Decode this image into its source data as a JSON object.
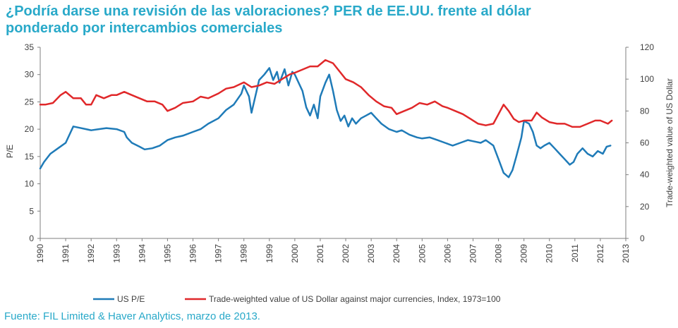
{
  "title": {
    "line1": "¿Podría darse una revisión de las valoraciones? PER de EE.UU. frente al dólar",
    "line2": "ponderado por intercambios comerciales"
  },
  "source": "Fuente: FIL Limited & Haver Analytics, marzo de 2013.",
  "colors": {
    "title": "#29a9c9",
    "us_pe": "#1f7bb8",
    "usd": "#e0282a",
    "axis": "#7f7f7f"
  },
  "chart_data": {
    "type": "line",
    "ylabel_left": "P/E",
    "ylabel_right": "Trade-weighted value of US Dollar",
    "ylim_left": [
      0,
      35
    ],
    "ylim_right": [
      0,
      120
    ],
    "xlim": [
      1990,
      2013
    ],
    "x_ticks": [
      "1990",
      "1991",
      "1992",
      "1993",
      "1994",
      "1995",
      "1996",
      "1997",
      "1998",
      "1999",
      "2000",
      "2001",
      "2002",
      "2003",
      "2004",
      "2005",
      "2006",
      "2007",
      "2008",
      "2009",
      "2010",
      "2011",
      "2012",
      "2013"
    ],
    "y_ticks_left": [
      "0",
      "5",
      "10",
      "15",
      "20",
      "25",
      "30",
      "35"
    ],
    "y_ticks_right": [
      "0",
      "20",
      "40",
      "60",
      "80",
      "100",
      "120"
    ],
    "legend": {
      "position": "bottom"
    },
    "series": [
      {
        "name": "US P/E",
        "axis": "left",
        "x": [
          1990.0,
          1990.15,
          1990.4,
          1990.7,
          1991.0,
          1991.2,
          1991.3,
          1991.5,
          1991.8,
          1992.0,
          1992.3,
          1992.6,
          1993.0,
          1993.3,
          1993.4,
          1993.6,
          1993.9,
          1994.1,
          1994.4,
          1994.7,
          1995.0,
          1995.3,
          1995.6,
          1996.0,
          1996.3,
          1996.6,
          1997.0,
          1997.3,
          1997.6,
          1997.9,
          1998.0,
          1998.2,
          1998.3,
          1998.5,
          1998.6,
          1998.8,
          1999.0,
          1999.15,
          1999.3,
          1999.4,
          1999.6,
          1999.75,
          1999.9,
          2000.0,
          2000.1,
          2000.3,
          2000.45,
          2000.6,
          2000.75,
          2000.9,
          2001.0,
          2001.2,
          2001.35,
          2001.5,
          2001.65,
          2001.8,
          2001.95,
          2002.1,
          2002.25,
          2002.4,
          2002.6,
          2002.8,
          2003.0,
          2003.2,
          2003.4,
          2003.7,
          2004.0,
          2004.2,
          2004.5,
          2004.8,
          2005.0,
          2005.3,
          2005.6,
          2005.9,
          2006.2,
          2006.5,
          2006.8,
          2007.0,
          2007.3,
          2007.5,
          2007.8,
          2008.0,
          2008.2,
          2008.4,
          2008.55,
          2008.7,
          2008.9,
          2009.0,
          2009.2,
          2009.35,
          2009.5,
          2009.65,
          2009.8,
          2010.0,
          2010.2,
          2010.4,
          2010.6,
          2010.8,
          2010.95,
          2011.1,
          2011.3,
          2011.5,
          2011.7,
          2011.9,
          2012.1,
          2012.25,
          2012.4
        ],
        "values": [
          12.8,
          14.0,
          15.5,
          16.5,
          17.5,
          19.5,
          20.5,
          20.3,
          20.0,
          19.8,
          20.0,
          20.2,
          20.0,
          19.5,
          18.5,
          17.5,
          16.8,
          16.3,
          16.5,
          17.0,
          18.0,
          18.5,
          18.8,
          19.5,
          20.0,
          21.0,
          22.0,
          23.5,
          24.5,
          26.5,
          28.0,
          26.0,
          23.0,
          27.0,
          29.0,
          30.0,
          31.2,
          29.0,
          30.5,
          28.5,
          31.0,
          28.0,
          30.5,
          30.0,
          29.0,
          27.0,
          24.0,
          22.5,
          24.5,
          22.0,
          26.0,
          28.5,
          30.0,
          27.0,
          23.5,
          21.5,
          22.5,
          20.5,
          22.0,
          21.0,
          22.0,
          22.5,
          23.0,
          22.0,
          21.0,
          20.0,
          19.5,
          19.8,
          19.0,
          18.5,
          18.3,
          18.5,
          18.0,
          17.5,
          17.0,
          17.5,
          18.0,
          17.8,
          17.5,
          18.0,
          17.0,
          14.5,
          12.0,
          11.2,
          12.5,
          15.0,
          18.5,
          21.5,
          21.0,
          19.5,
          17.0,
          16.5,
          17.0,
          17.5,
          16.5,
          15.5,
          14.5,
          13.5,
          14.0,
          15.5,
          16.5,
          15.5,
          15.0,
          16.0,
          15.5,
          16.8,
          17.0
        ]
      },
      {
        "name": "Trade-weighted value of US Dollar against major currencies, Index, 1973=100",
        "axis": "right",
        "x": [
          1990.0,
          1990.2,
          1990.5,
          1990.8,
          1991.0,
          1991.3,
          1991.6,
          1991.8,
          1992.0,
          1992.2,
          1992.5,
          1992.8,
          1993.0,
          1993.3,
          1993.6,
          1993.9,
          1994.2,
          1994.5,
          1994.8,
          1995.0,
          1995.3,
          1995.6,
          1996.0,
          1996.3,
          1996.6,
          1997.0,
          1997.3,
          1997.6,
          1998.0,
          1998.3,
          1998.6,
          1998.9,
          1999.2,
          1999.5,
          1999.8,
          2000.0,
          2000.3,
          2000.6,
          2000.9,
          2001.2,
          2001.5,
          2001.8,
          2002.0,
          2002.3,
          2002.6,
          2002.9,
          2003.2,
          2003.5,
          2003.8,
          2004.0,
          2004.3,
          2004.6,
          2004.9,
          2005.2,
          2005.5,
          2005.8,
          2006.0,
          2006.3,
          2006.6,
          2006.9,
          2007.2,
          2007.5,
          2007.8,
          2008.0,
          2008.2,
          2008.4,
          2008.6,
          2008.8,
          2009.0,
          2009.3,
          2009.5,
          2009.7,
          2010.0,
          2010.3,
          2010.6,
          2010.9,
          2011.2,
          2011.5,
          2011.8,
          2012.0,
          2012.3,
          2012.45
        ],
        "values": [
          84,
          84,
          85,
          90,
          92,
          88,
          88,
          84,
          84,
          90,
          88,
          90,
          90,
          92,
          90,
          88,
          86,
          86,
          84,
          80,
          82,
          85,
          86,
          89,
          88,
          91,
          94,
          95,
          98,
          95,
          96,
          98,
          97,
          100,
          103,
          104,
          106,
          108,
          108,
          112,
          110,
          104,
          100,
          98,
          95,
          90,
          86,
          83,
          82,
          78,
          80,
          82,
          85,
          84,
          86,
          83,
          82,
          80,
          78,
          75,
          72,
          71,
          72,
          78,
          84,
          80,
          75,
          73,
          74,
          74,
          79,
          76,
          73,
          72,
          72,
          70,
          70,
          72,
          74,
          74,
          72,
          74
        ]
      }
    ]
  }
}
